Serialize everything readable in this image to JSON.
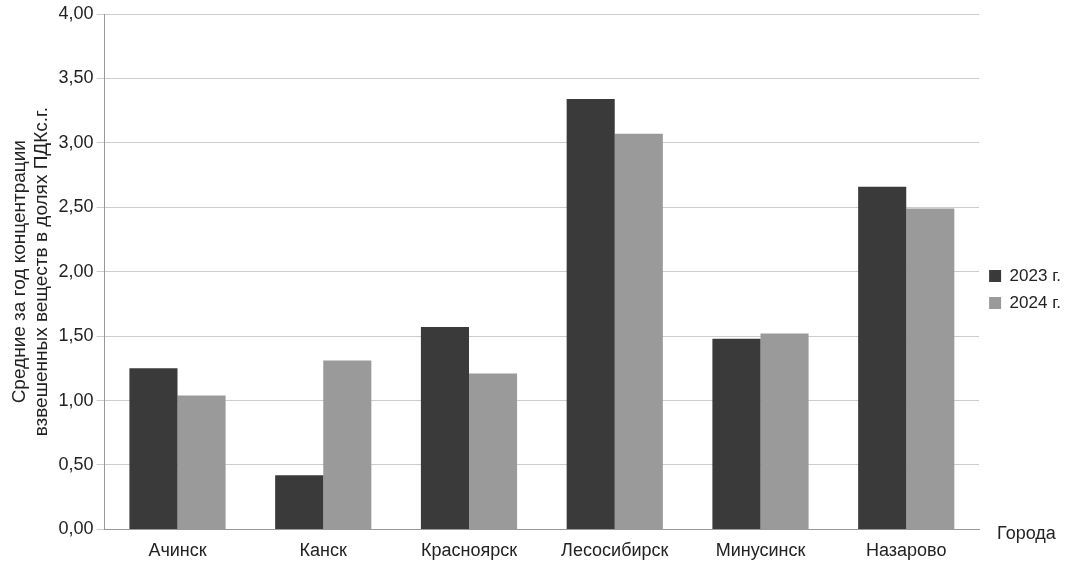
{
  "chart_data": {
    "type": "bar",
    "xlabel": "Города",
    "ylabel": "Средние за год концентрации\nвзвешенных веществ в долях ПДКс.г.",
    "categories": [
      "Ачинск",
      "Канск",
      "Красноярск",
      "Лесосибирск",
      "Минусинск",
      "Назарово"
    ],
    "series": [
      {
        "name": "2023 г.",
        "color": "#3a3a3a",
        "values": [
          1.25,
          0.42,
          1.57,
          3.34,
          1.48,
          2.66
        ]
      },
      {
        "name": "2024 г.",
        "color": "#9a9a9a",
        "values": [
          1.04,
          1.31,
          1.21,
          3.07,
          1.52,
          2.49
        ]
      }
    ],
    "ylim": [
      0,
      4
    ],
    "yticks": [
      {
        "value": 0,
        "label": "0,00"
      },
      {
        "value": 0.5,
        "label": "0,50"
      },
      {
        "value": 1,
        "label": "1,00"
      },
      {
        "value": 1.5,
        "label": "1,50"
      },
      {
        "value": 2,
        "label": "2,00"
      },
      {
        "value": 2.5,
        "label": "2,50"
      },
      {
        "value": 3,
        "label": "3,00"
      },
      {
        "value": 3.5,
        "label": "3,50"
      },
      {
        "value": 4,
        "label": "4,00"
      }
    ],
    "grid": "y",
    "legend": "right"
  }
}
